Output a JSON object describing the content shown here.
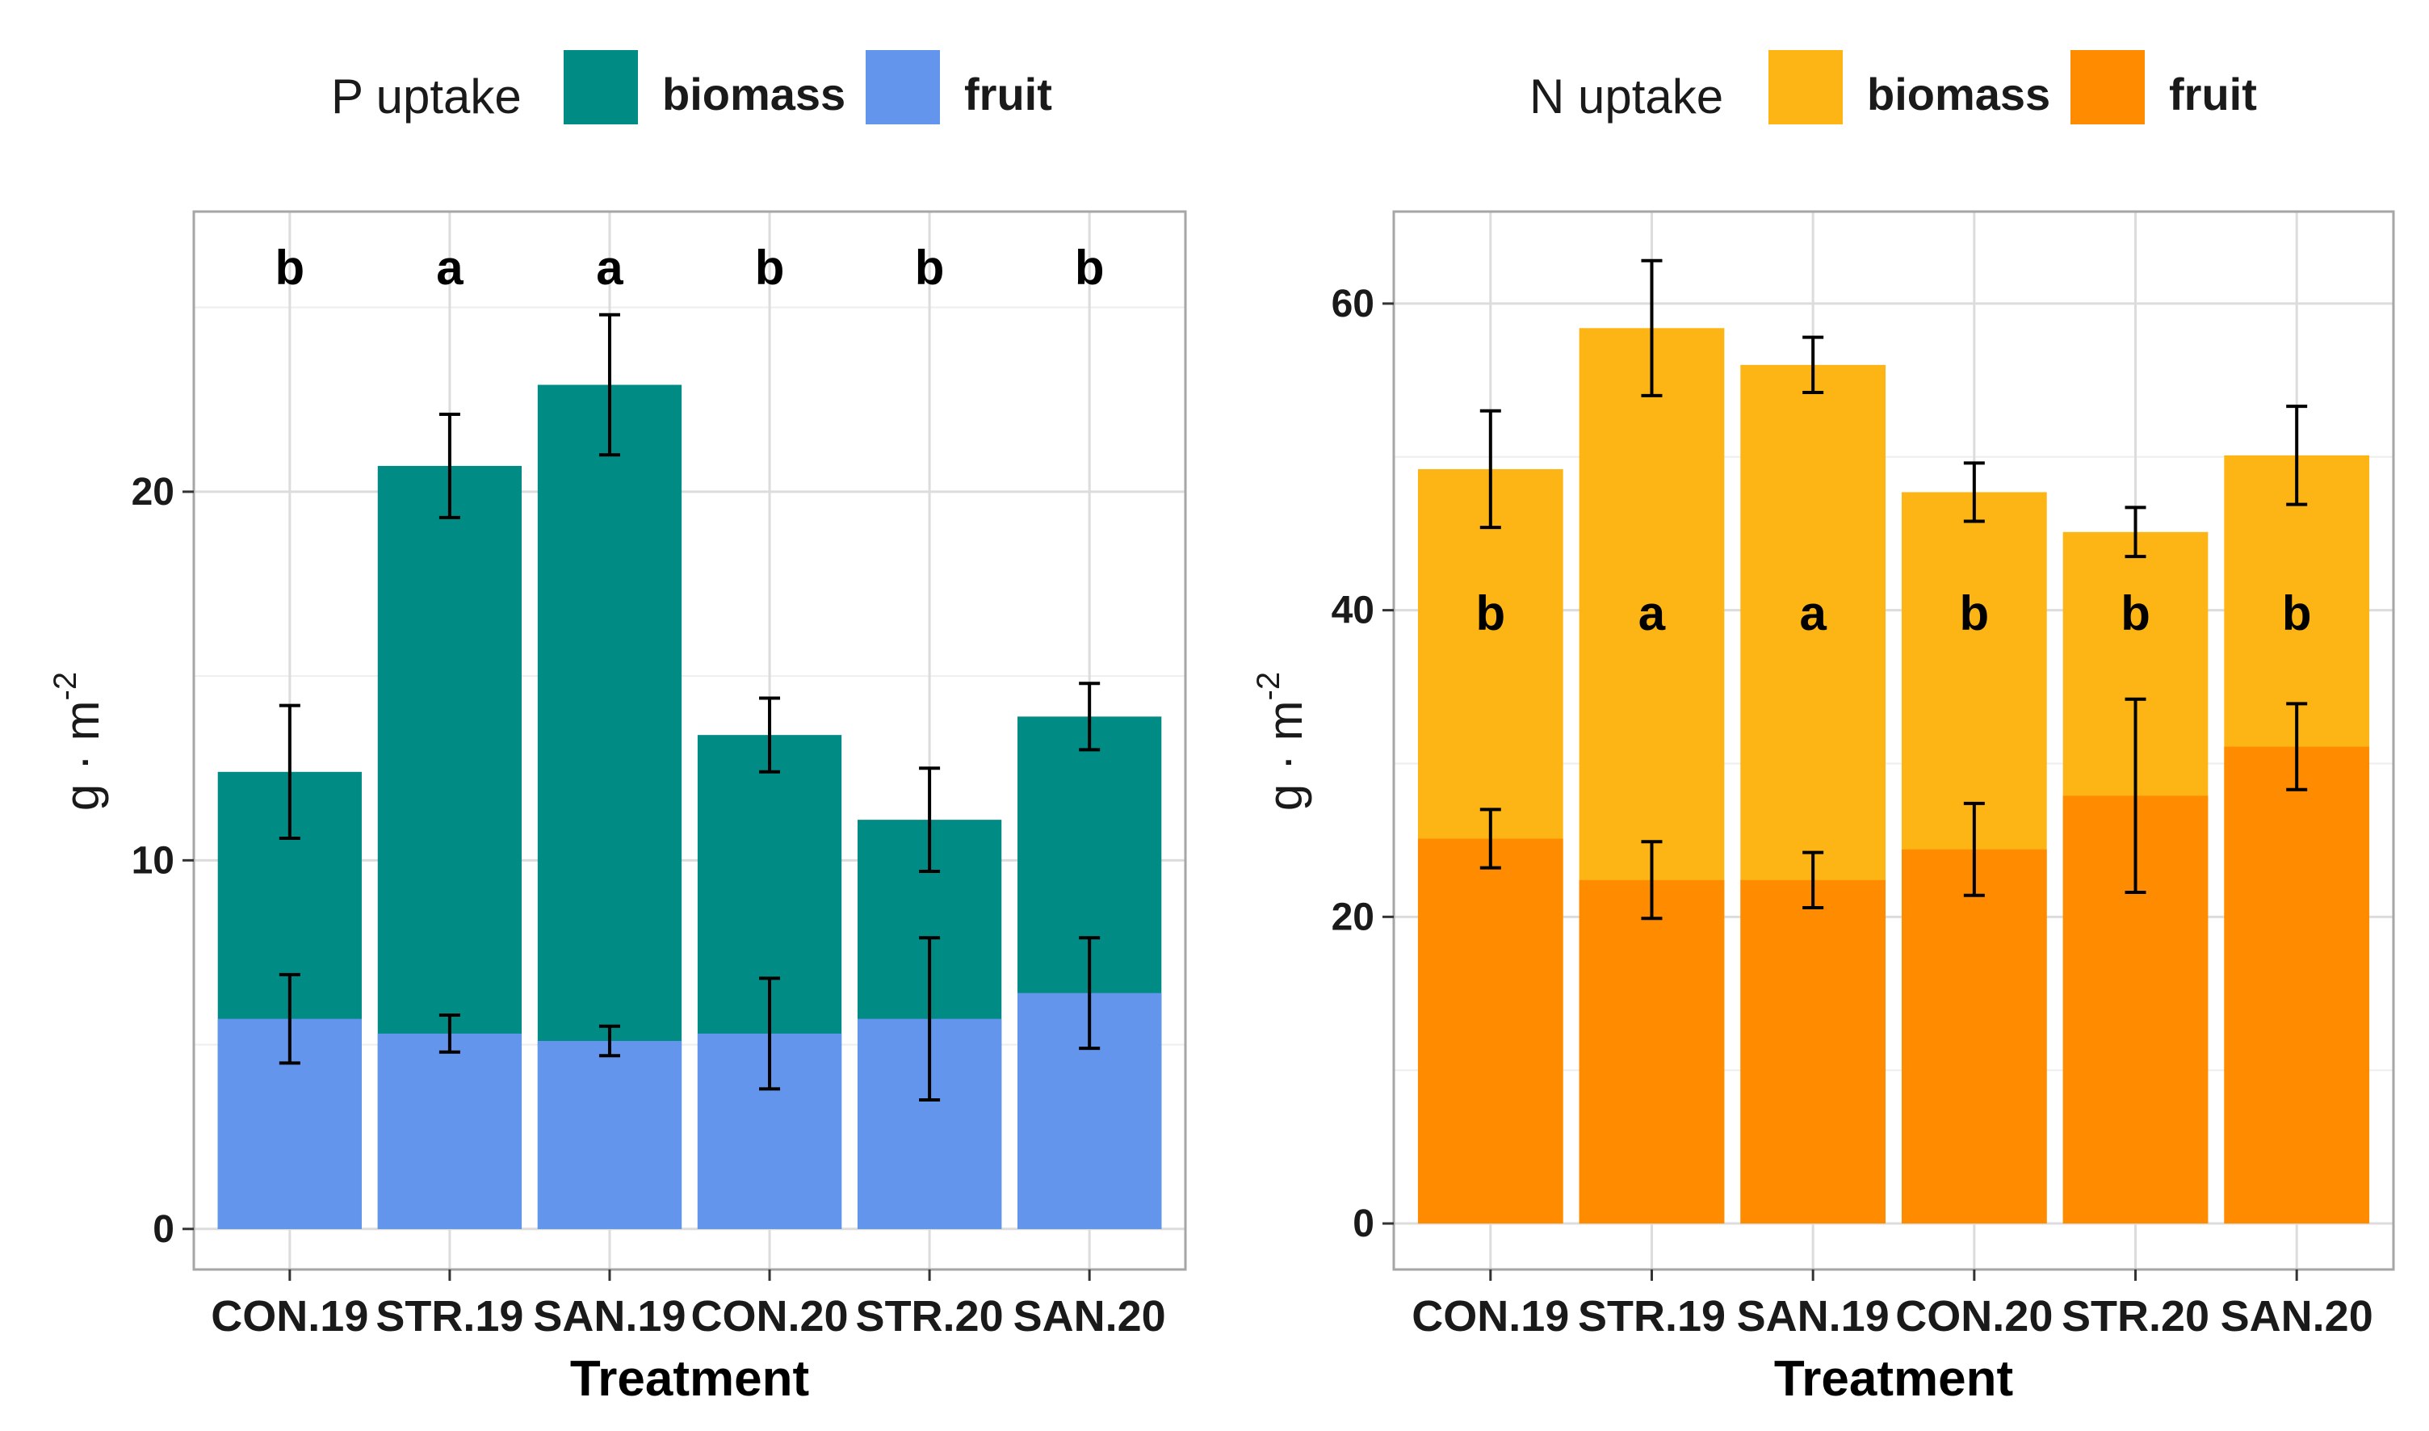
{
  "chart_data": [
    {
      "type": "bar",
      "stacked": true,
      "title": "",
      "legend_title": "P uptake",
      "legend_position": "top",
      "xlabel": "Treatment",
      "ylabel": "g · m",
      "ylabel_superscript": "-2",
      "categories": [
        "CON.19",
        "STR.19",
        "SAN.19",
        "CON.20",
        "STR.20",
        "SAN.20"
      ],
      "series": [
        {
          "name": "biomass",
          "color": "#008b84",
          "totals": [
            12.4,
            20.7,
            22.9,
            13.4,
            11.1,
            13.9
          ],
          "errors": [
            1.8,
            1.4,
            1.9,
            1.0,
            1.4,
            0.9
          ]
        },
        {
          "name": "fruit",
          "color": "#6495ed",
          "values": [
            5.7,
            5.3,
            5.1,
            5.3,
            5.7,
            6.4
          ],
          "errors": [
            1.2,
            0.5,
            0.4,
            1.5,
            2.2,
            1.5
          ]
        }
      ],
      "significance_letters": [
        "b",
        "a",
        "a",
        "b",
        "b",
        "b"
      ],
      "ylim": [
        -1.1,
        27.6
      ],
      "yticks": [
        0,
        10,
        20
      ]
    },
    {
      "type": "bar",
      "stacked": true,
      "title": "",
      "legend_title": "N uptake",
      "legend_position": "top",
      "xlabel": "Treatment",
      "ylabel": "g · m",
      "ylabel_superscript": "-2",
      "categories": [
        "CON.19",
        "STR.19",
        "SAN.19",
        "CON.20",
        "STR.20",
        "SAN.20"
      ],
      "series": [
        {
          "name": "biomass",
          "color": "#fdb515",
          "totals": [
            49.2,
            58.4,
            56.0,
            47.7,
            45.1,
            50.1
          ],
          "errors": [
            3.8,
            4.4,
            1.8,
            1.9,
            1.6,
            3.2
          ]
        },
        {
          "name": "fruit",
          "color": "#ff8c00",
          "values": [
            25.1,
            22.4,
            22.4,
            24.4,
            27.9,
            31.1
          ],
          "errors": [
            1.9,
            2.5,
            1.8,
            3.0,
            6.3,
            2.8
          ]
        }
      ],
      "significance_letters": [
        "b",
        "a",
        "a",
        "b",
        "b",
        "b"
      ],
      "ylim": [
        -3.0,
        66.0
      ],
      "yticks": [
        0,
        20,
        40,
        60
      ]
    }
  ]
}
